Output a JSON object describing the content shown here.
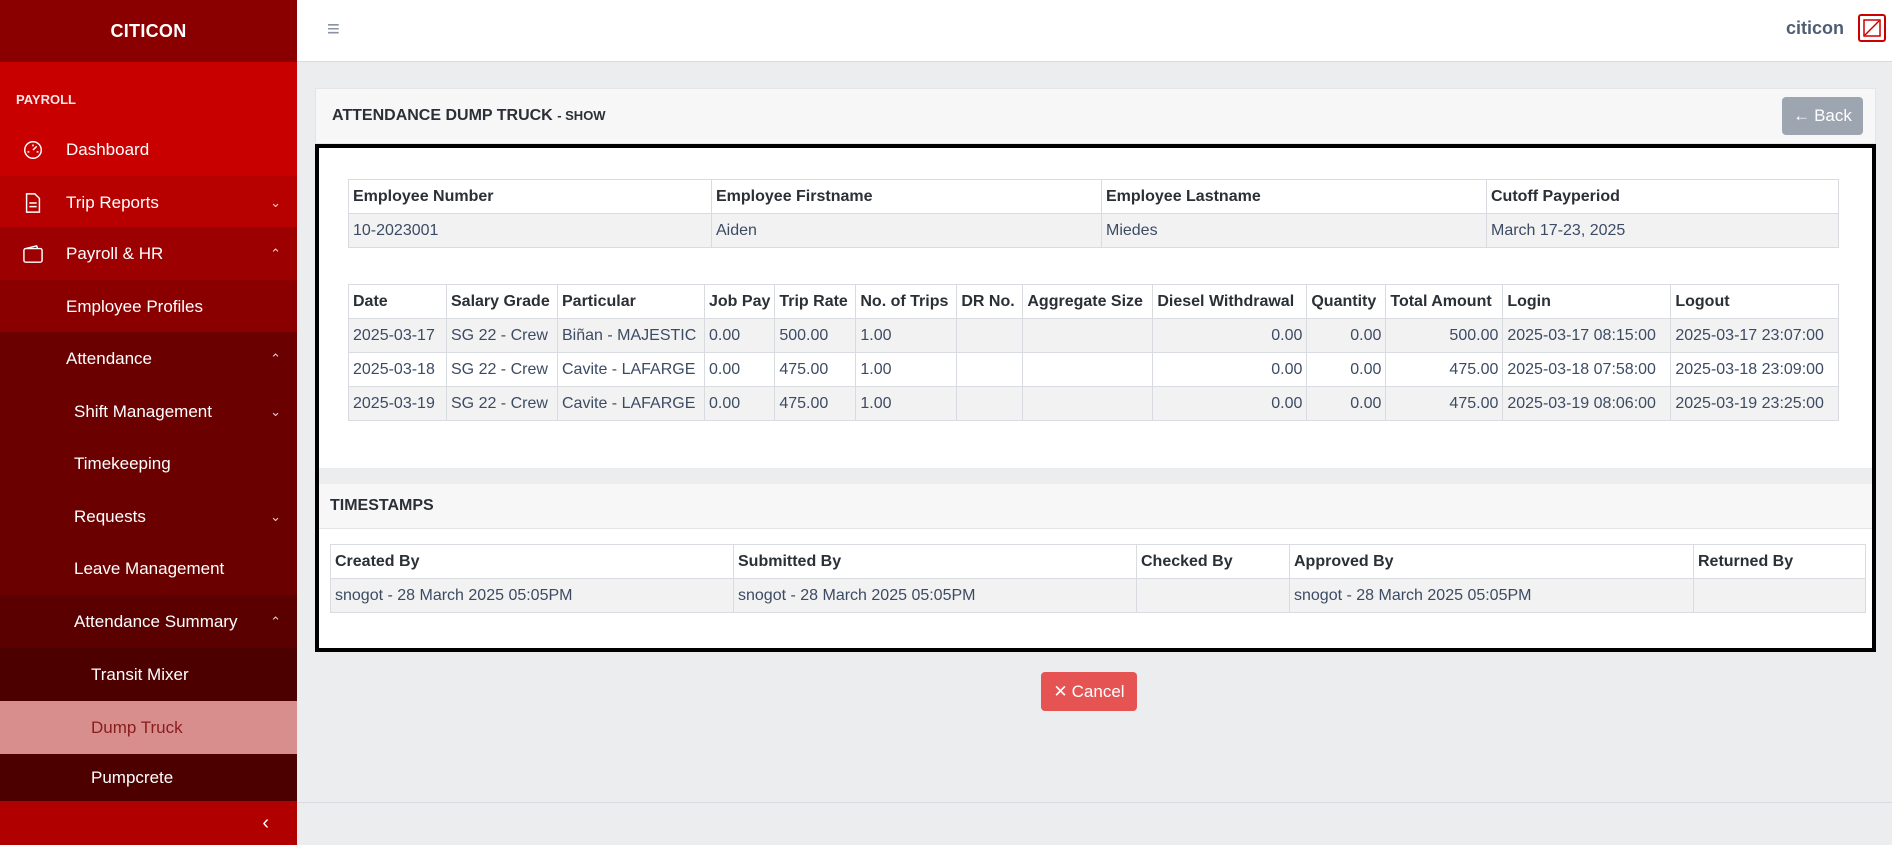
{
  "brand": "CITICON",
  "sidebar": {
    "section_title": "PAYROLL",
    "items": [
      {
        "label": "Dashboard",
        "icon": "speedometer-icon"
      },
      {
        "label": "Trip Reports",
        "icon": "document-icon"
      },
      {
        "label": "Payroll & HR",
        "icon": "wallet-icon"
      },
      {
        "label": "Employee Profiles"
      },
      {
        "label": "Attendance"
      },
      {
        "label": "Shift Management"
      },
      {
        "label": "Timekeeping"
      },
      {
        "label": "Requests"
      },
      {
        "label": "Leave Management"
      },
      {
        "label": "Attendance Summary"
      },
      {
        "label": "Transit Mixer"
      },
      {
        "label": "Dump Truck"
      },
      {
        "label": "Pumpcrete"
      }
    ]
  },
  "header": {
    "user": "citicon"
  },
  "card": {
    "title": "ATTENDANCE DUMP TRUCK",
    "subtitle": "- SHOW",
    "back_label": "Back"
  },
  "employee": {
    "headers": [
      "Employee Number",
      "Employee Firstname",
      "Employee Lastname",
      "Cutoff Payperiod"
    ],
    "values": [
      "10-2023001",
      "Aiden",
      "Miedes",
      "March 17-23, 2025"
    ]
  },
  "attendance": {
    "headers": [
      "Date",
      "Salary Grade",
      "Particular",
      "Job Pay",
      "Trip Rate",
      "No. of Trips",
      "DR No.",
      "Aggregate Size",
      "Diesel Withdrawal",
      "Quantity",
      "Total Amount",
      "Login",
      "Logout"
    ],
    "rows": [
      [
        "2025-03-17",
        "SG 22 - Crew",
        "Biñan - MAJESTIC",
        "0.00",
        "500.00",
        "1.00",
        "",
        "",
        "0.00",
        "0.00",
        "500.00",
        "2025-03-17 08:15:00",
        "2025-03-17 23:07:00"
      ],
      [
        "2025-03-18",
        "SG 22 - Crew",
        "Cavite - LAFARGE",
        "0.00",
        "475.00",
        "1.00",
        "",
        "",
        "0.00",
        "0.00",
        "475.00",
        "2025-03-18 07:58:00",
        "2025-03-18 23:09:00"
      ],
      [
        "2025-03-19",
        "SG 22 - Crew",
        "Cavite - LAFARGE",
        "0.00",
        "475.00",
        "1.00",
        "",
        "",
        "0.00",
        "0.00",
        "475.00",
        "2025-03-19 08:06:00",
        "2025-03-19 23:25:00"
      ]
    ]
  },
  "timestamps": {
    "title": "TIMESTAMPS",
    "headers": [
      "Created By",
      "Submitted By",
      "Checked By",
      "Approved By",
      "Returned By"
    ],
    "values": [
      "snogot - 28 March 2025 05:05PM",
      "snogot - 28 March 2025 05:05PM",
      "",
      "snogot - 28 March 2025 05:05PM",
      ""
    ]
  },
  "cancel_label": "Cancel",
  "colors": {
    "brand": "#8a0000",
    "accent": "#c80000",
    "cancel": "#e55353",
    "back": "#9da5b1"
  }
}
